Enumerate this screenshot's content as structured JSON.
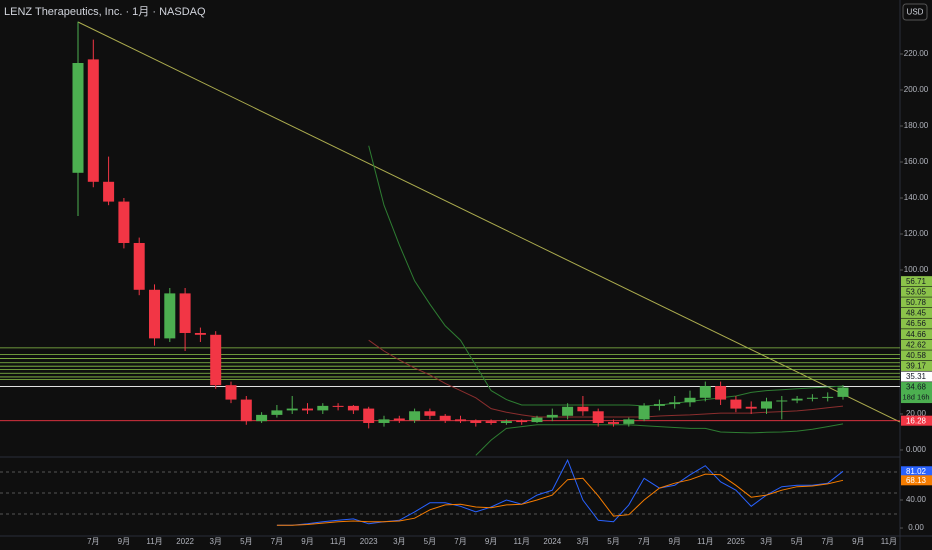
{
  "chart_data": {
    "type": "candlestick",
    "title": "LENZ Therapeutics, Inc. · 1月 · NASDAQ",
    "currency": "USD",
    "categories": [
      null,
      "7月",
      null,
      "9月",
      null,
      "11月",
      null,
      "2022",
      null,
      "3月",
      null,
      "5月",
      null,
      "7月",
      null,
      "9月",
      null,
      "11月",
      null,
      "2023",
      null,
      "3月",
      null,
      "5月",
      null,
      "7月",
      null,
      "9月",
      null,
      "11月",
      null,
      "2024",
      null,
      "3月",
      null,
      "5月",
      null,
      "7月",
      null,
      "9月",
      null,
      "11月",
      null,
      "2025",
      null,
      "3月",
      null,
      "5月",
      null,
      "7月",
      null,
      "9月",
      null,
      "11月"
    ],
    "candles": [
      [
        154,
        238,
        130,
        215
      ],
      [
        217,
        228,
        146,
        149
      ],
      [
        149,
        163,
        136,
        138
      ],
      [
        138,
        140,
        112,
        115
      ],
      [
        115,
        118,
        86,
        89
      ],
      [
        89,
        92,
        58,
        62
      ],
      [
        62,
        90,
        60,
        87
      ],
      [
        87,
        90,
        55,
        65
      ],
      [
        65,
        68,
        60,
        64
      ],
      [
        64,
        66,
        34,
        36
      ],
      [
        36,
        38,
        26,
        28
      ],
      [
        28,
        30,
        14,
        16
      ],
      [
        16,
        21,
        15,
        19.5
      ],
      [
        19.5,
        25,
        18,
        22
      ],
      [
        22,
        30,
        20,
        23
      ],
      [
        23,
        26,
        20,
        22
      ],
      [
        22,
        26,
        20,
        24.5
      ],
      [
        24.5,
        26,
        22,
        24
      ],
      [
        24.5,
        25,
        20,
        22
      ],
      [
        23,
        24,
        12,
        15
      ],
      [
        15,
        19,
        13,
        17
      ],
      [
        17.5,
        19,
        15,
        16.5
      ],
      [
        16.5,
        23,
        15,
        21.5
      ],
      [
        21.5,
        23,
        17,
        19
      ],
      [
        19,
        20,
        15,
        16.5
      ],
      [
        17,
        19,
        15,
        16
      ],
      [
        16.5,
        17,
        13,
        15
      ],
      [
        16,
        17,
        14,
        15
      ],
      [
        15,
        17,
        14,
        16
      ],
      [
        16.5,
        17,
        14,
        15.5
      ],
      [
        15.5,
        19,
        15,
        18
      ],
      [
        18,
        23,
        16,
        19.5
      ],
      [
        19,
        26,
        17,
        24
      ],
      [
        24,
        30,
        19,
        21.5
      ],
      [
        21.5,
        23,
        13,
        15
      ],
      [
        15.5,
        17,
        13,
        14.5
      ],
      [
        14.5,
        18,
        13,
        17
      ],
      [
        17,
        26,
        16,
        24.5
      ],
      [
        24.5,
        28,
        22,
        25.5
      ],
      [
        25.5,
        30,
        23,
        26.5
      ],
      [
        26.5,
        33,
        24,
        29
      ],
      [
        29,
        38,
        27,
        35.5
      ],
      [
        35.5,
        38,
        25,
        28
      ],
      [
        28,
        30,
        21,
        23
      ],
      [
        24,
        27,
        20,
        23
      ],
      [
        23,
        29,
        20,
        27
      ],
      [
        27,
        30,
        17,
        27.5
      ],
      [
        27.5,
        30,
        26,
        28.5
      ],
      [
        28.5,
        31,
        27,
        29
      ],
      [
        29,
        32,
        27,
        29.5
      ],
      [
        29.5,
        36,
        28,
        34.68
      ]
    ],
    "up_color": "#4caf50",
    "down_color": "#f23645",
    "ylim": [
      -3.9,
      250
    ],
    "yticks": [
      {
        "value": 0,
        "label": "0.000"
      },
      {
        "value": 20,
        "label": "20.00"
      },
      {
        "value": 100,
        "label": "100.00"
      },
      {
        "value": 120,
        "label": "120.00"
      },
      {
        "value": 140,
        "label": "140.00"
      },
      {
        "value": 160,
        "label": "160.00"
      },
      {
        "value": 180,
        "label": "180.00"
      },
      {
        "value": 200,
        "label": "200.00"
      },
      {
        "value": 220,
        "label": "220.00"
      }
    ],
    "levels": [
      {
        "value": 56.71,
        "color": "#8bc34a"
      },
      {
        "value": 53.05,
        "color": "#8bc34a"
      },
      {
        "value": 50.78,
        "color": "#8bc34a"
      },
      {
        "value": 48.45,
        "color": "#8bc34a"
      },
      {
        "value": 46.56,
        "color": "#8bc34a"
      },
      {
        "value": 44.66,
        "color": "#8bc34a"
      },
      {
        "value": 42.62,
        "color": "#8bc34a"
      },
      {
        "value": 40.58,
        "color": "#8bc34a"
      },
      {
        "value": 39.17,
        "color": "#8bc34a"
      },
      {
        "value": 35.31,
        "color": "#ffffff"
      },
      {
        "value": 16.28,
        "color": "#f23645"
      }
    ],
    "countdown": "18d 16h",
    "overlays": [
      {
        "color": "#2e7d32",
        "values": [
          null,
          null,
          null,
          null,
          null,
          null,
          null,
          null,
          null,
          null,
          null,
          null,
          null,
          null,
          null,
          null,
          null,
          null,
          null,
          169,
          136,
          114,
          94,
          81,
          69,
          61,
          47,
          33,
          28,
          25,
          25,
          25,
          25,
          25,
          25,
          25,
          25,
          24.5,
          25,
          26,
          27,
          28,
          29,
          30,
          32,
          33,
          33.5,
          34,
          34.5,
          35,
          35.5
        ]
      },
      {
        "color": "#2e7d32",
        "values": [
          null,
          null,
          null,
          null,
          null,
          null,
          null,
          null,
          null,
          null,
          null,
          null,
          null,
          null,
          null,
          null,
          null,
          null,
          null,
          null,
          null,
          null,
          null,
          null,
          null,
          null,
          -3,
          5.5,
          12,
          13,
          14,
          14,
          14,
          14,
          14,
          14,
          14,
          13.5,
          13,
          12.5,
          12,
          12,
          10,
          9.7,
          9.5,
          9.8,
          10,
          10.5,
          11.5,
          13,
          14.5
        ]
      },
      {
        "color": "#8b2e2e",
        "values": [
          null,
          null,
          null,
          null,
          null,
          null,
          null,
          null,
          null,
          null,
          null,
          null,
          null,
          null,
          null,
          null,
          null,
          null,
          null,
          61,
          55,
          50,
          45.5,
          41.7,
          37,
          33,
          29,
          23,
          21,
          19.5,
          18.3,
          18.3,
          18.3,
          18.3,
          18.3,
          18.3,
          18.3,
          18.3,
          18.9,
          19.2,
          19.5,
          20,
          20.5,
          20.5,
          20.5,
          21,
          21.3,
          21.7,
          22.5,
          23.5,
          24.4
        ]
      }
    ],
    "oscillator": {
      "ylim": [
        -11.4,
        101.4
      ],
      "yticks": [
        {
          "value": 0,
          "label": "0.00"
        },
        {
          "value": 40,
          "label": "40.00"
        }
      ],
      "bands": [
        80,
        50,
        20
      ],
      "series": [
        {
          "color": "#2962ff",
          "values": [
            null,
            null,
            null,
            null,
            null,
            null,
            null,
            null,
            null,
            null,
            null,
            null,
            null,
            4,
            4,
            6,
            9,
            11,
            13,
            6,
            9,
            11,
            23,
            36,
            36,
            31,
            23,
            30,
            40,
            34,
            47,
            54,
            97,
            40,
            11,
            9,
            33,
            71,
            57,
            61,
            76,
            89,
            66,
            54,
            31,
            47,
            59,
            61,
            61,
            64,
            81.02
          ]
        },
        {
          "color": "#f57c00",
          "values": [
            null,
            null,
            null,
            null,
            null,
            null,
            null,
            null,
            null,
            null,
            null,
            null,
            null,
            4,
            4,
            5,
            7,
            9,
            10,
            9,
            9,
            10,
            14,
            26,
            33,
            34,
            30,
            29,
            33,
            34,
            40,
            47,
            69,
            71,
            46,
            17,
            19,
            40,
            57,
            64,
            69,
            77,
            76,
            61,
            44,
            47,
            54,
            59,
            60,
            63,
            68.13
          ]
        }
      ]
    }
  }
}
